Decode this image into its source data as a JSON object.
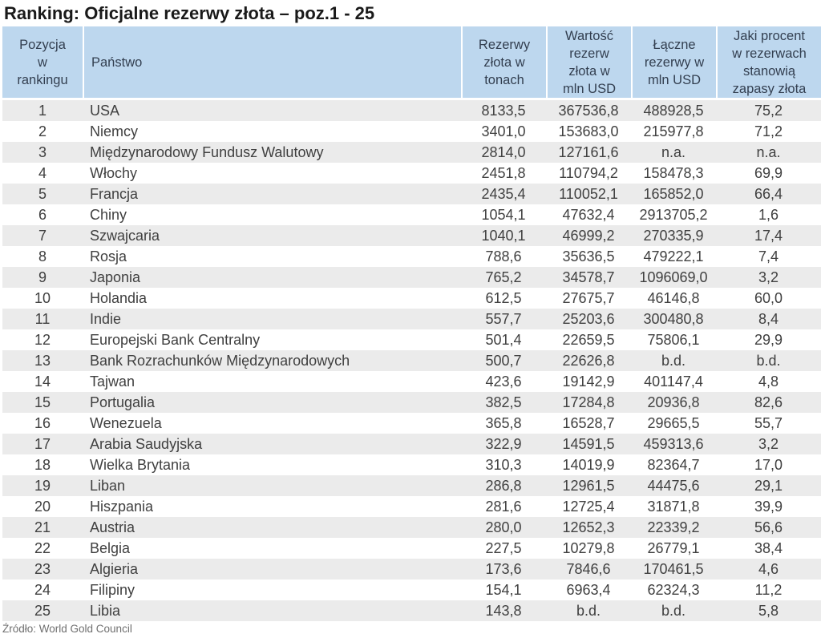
{
  "page": {
    "title": "Ranking: Oficjalne rezerwy złota – poz.1 - 25",
    "source": "Źródło: World Gold Council"
  },
  "colors": {
    "header_bg": "#BDD7EE",
    "header_text": "#333F50",
    "row_bg": "#FFFFFF",
    "row_alt_bg": "#EBEBEB",
    "body_text": "#404040",
    "title_text": "#1A1A1A",
    "source_text": "#6F6F6F"
  },
  "chart_data": {
    "type": "table",
    "title": "Ranking: Oficjalne rezerwy złota – poz.1 - 25",
    "columns": [
      "Pozycja w rankingu",
      "Państwo",
      "Rezerwy złota w tonach",
      "Wartość rezerw złota w mln USD",
      "Łączne rezerwy w mln USD",
      "Jaki procent w rezerwach stanowią zapasy złota"
    ],
    "rows": [
      [
        "1",
        "USA",
        "8133,5",
        "367536,8",
        "488928,5",
        "75,2"
      ],
      [
        "2",
        "Niemcy",
        "3401,0",
        "153683,0",
        "215977,8",
        "71,2"
      ],
      [
        "3",
        "Międzynarodowy Fundusz Walutowy",
        "2814,0",
        "127161,6",
        "n.a.",
        "n.a."
      ],
      [
        "4",
        "Włochy",
        "2451,8",
        "110794,2",
        "158478,3",
        "69,9"
      ],
      [
        "5",
        "Francja",
        "2435,4",
        "110052,1",
        "165852,0",
        "66,4"
      ],
      [
        "6",
        "Chiny",
        "1054,1",
        "47632,4",
        "2913705,2",
        "1,6"
      ],
      [
        "7",
        "Szwajcaria",
        "1040,1",
        "46999,2",
        "270335,9",
        "17,4"
      ],
      [
        "8",
        "Rosja",
        "788,6",
        "35636,5",
        "479222,1",
        "7,4"
      ],
      [
        "9",
        "Japonia",
        "765,2",
        "34578,7",
        "1096069,0",
        "3,2"
      ],
      [
        "10",
        "Holandia",
        "612,5",
        "27675,7",
        "46146,8",
        "60,0"
      ],
      [
        "11",
        "Indie",
        "557,7",
        "25203,6",
        "300480,8",
        "8,4"
      ],
      [
        "12",
        "Europejski Bank Centralny",
        "501,4",
        "22659,5",
        "75806,1",
        "29,9"
      ],
      [
        "13",
        "Bank Rozrachunków Międzynarodowych",
        "500,7",
        "22626,8",
        "b.d.",
        "b.d."
      ],
      [
        "14",
        "Tajwan",
        "423,6",
        "19142,9",
        "401147,4",
        "4,8"
      ],
      [
        "15",
        "Portugalia",
        "382,5",
        "17284,8",
        "20936,8",
        "82,6"
      ],
      [
        "16",
        "Wenezuela",
        "365,8",
        "16528,7",
        "29665,5",
        "55,7"
      ],
      [
        "17",
        "Arabia Saudyjska",
        "322,9",
        "14591,5",
        "459313,6",
        "3,2"
      ],
      [
        "18",
        "Wielka Brytania",
        "310,3",
        "14019,9",
        "82364,7",
        "17,0"
      ],
      [
        "19",
        "Liban",
        "286,8",
        "12961,5",
        "44475,6",
        "29,1"
      ],
      [
        "20",
        "Hiszpania",
        "281,6",
        "12725,4",
        "31871,8",
        "39,9"
      ],
      [
        "21",
        "Austria",
        "280,0",
        "12652,3",
        "22339,2",
        "56,6"
      ],
      [
        "22",
        "Belgia",
        "227,5",
        "10279,8",
        "26779,1",
        "38,4"
      ],
      [
        "23",
        "Algieria",
        "173,6",
        "7846,6",
        "170461,5",
        "4,6"
      ],
      [
        "24",
        "Filipiny",
        "154,1",
        "6963,4",
        "62324,3",
        "11,2"
      ],
      [
        "25",
        "Libia",
        "143,8",
        "b.d.",
        "b.d.",
        "5,8"
      ]
    ],
    "source": "Źródło: World Gold Council"
  }
}
